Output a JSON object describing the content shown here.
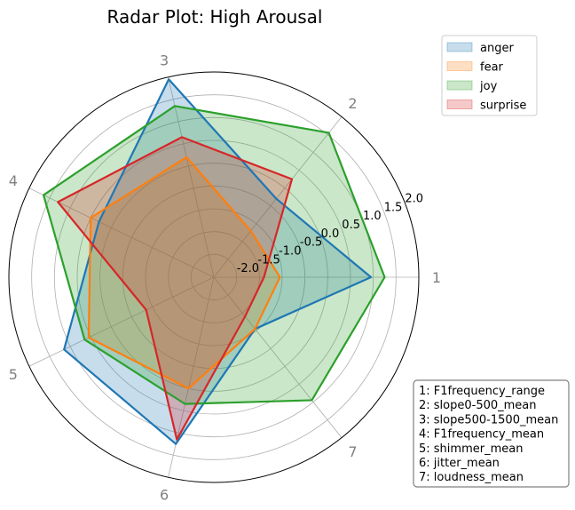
{
  "chart_data": {
    "type": "radar",
    "title": "Radar Plot: High Arousal",
    "axes": [
      "1",
      "2",
      "3",
      "4",
      "5",
      "6",
      "7"
    ],
    "rlim": [
      -2.5,
      2.0
    ],
    "r_ticks": [
      "-2.0",
      "-1.5",
      "-1.0",
      "-0.5",
      "0.0",
      "0.5",
      "1.0",
      "1.5",
      "2.0"
    ],
    "r_tick_values": [
      -2.0,
      -1.5,
      -1.0,
      -0.5,
      0.0,
      0.5,
      1.0,
      1.5,
      2.0
    ],
    "grid": true,
    "legend_position": "top-right",
    "series": [
      {
        "name": "anger",
        "color": "#1f77b4",
        "values": [
          0.95,
          -0.3,
          1.95,
          0.3,
          1.15,
          1.25,
          -1.05
        ]
      },
      {
        "name": "fear",
        "color": "#ff7f0e",
        "values": [
          -1.05,
          -1.2,
          0.2,
          0.5,
          0.55,
          0.0,
          -1.05
        ]
      },
      {
        "name": "joy",
        "color": "#2ca02c",
        "values": [
          1.25,
          1.55,
          1.35,
          1.65,
          0.65,
          0.35,
          0.95
        ]
      },
      {
        "name": "surprise",
        "color": "#d62728",
        "values": [
          -1.4,
          0.25,
          0.65,
          1.3,
          -0.85,
          1.15,
          -1.4
        ]
      }
    ],
    "axis_key": [
      "1: F1frequency_range",
      "2: slope0-500_mean",
      "3: slope500-1500_mean",
      "4: F1frequency_mean",
      "5: shimmer_mean",
      "6: jitter_mean",
      "7: loudness_mean"
    ]
  }
}
